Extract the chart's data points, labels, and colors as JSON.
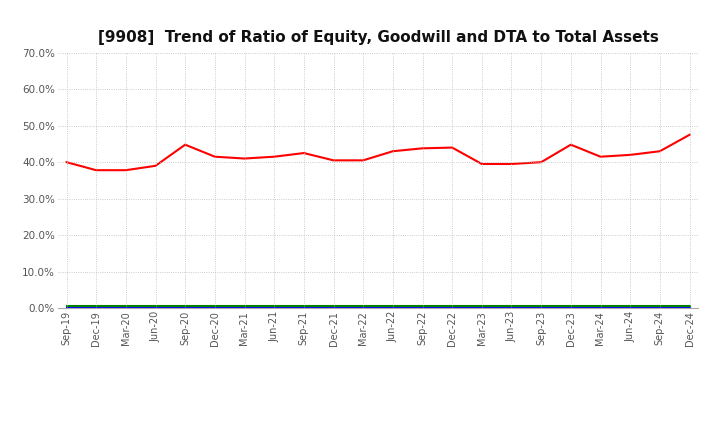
{
  "title": "[9908]  Trend of Ratio of Equity, Goodwill and DTA to Total Assets",
  "x_labels": [
    "Sep-19",
    "Dec-19",
    "Mar-20",
    "Jun-20",
    "Sep-20",
    "Dec-20",
    "Mar-21",
    "Jun-21",
    "Sep-21",
    "Dec-21",
    "Mar-22",
    "Jun-22",
    "Sep-22",
    "Dec-22",
    "Mar-23",
    "Jun-23",
    "Sep-23",
    "Dec-23",
    "Mar-24",
    "Jun-24",
    "Sep-24",
    "Dec-24"
  ],
  "equity": [
    0.4,
    0.378,
    0.378,
    0.39,
    0.448,
    0.415,
    0.41,
    0.415,
    0.425,
    0.405,
    0.405,
    0.43,
    0.438,
    0.44,
    0.395,
    0.395,
    0.4,
    0.448,
    0.415,
    0.42,
    0.43,
    0.475
  ],
  "goodwill": [
    0.0,
    0.0,
    0.0,
    0.0,
    0.0,
    0.0,
    0.0,
    0.0,
    0.0,
    0.0,
    0.0,
    0.0,
    0.0,
    0.0,
    0.0,
    0.0,
    0.0,
    0.0,
    0.0,
    0.0,
    0.0,
    0.0
  ],
  "dta": [
    0.005,
    0.005,
    0.005,
    0.005,
    0.005,
    0.005,
    0.005,
    0.005,
    0.005,
    0.005,
    0.005,
    0.005,
    0.005,
    0.005,
    0.005,
    0.005,
    0.005,
    0.005,
    0.005,
    0.005,
    0.005,
    0.005
  ],
  "equity_color": "#FF0000",
  "goodwill_color": "#0000FF",
  "dta_color": "#008000",
  "ylim": [
    0.0,
    0.7
  ],
  "yticks": [
    0.0,
    0.1,
    0.2,
    0.3,
    0.4,
    0.5,
    0.6,
    0.7
  ],
  "background_color": "#FFFFFF",
  "grid_color": "#BBBBBB",
  "title_fontsize": 11
}
